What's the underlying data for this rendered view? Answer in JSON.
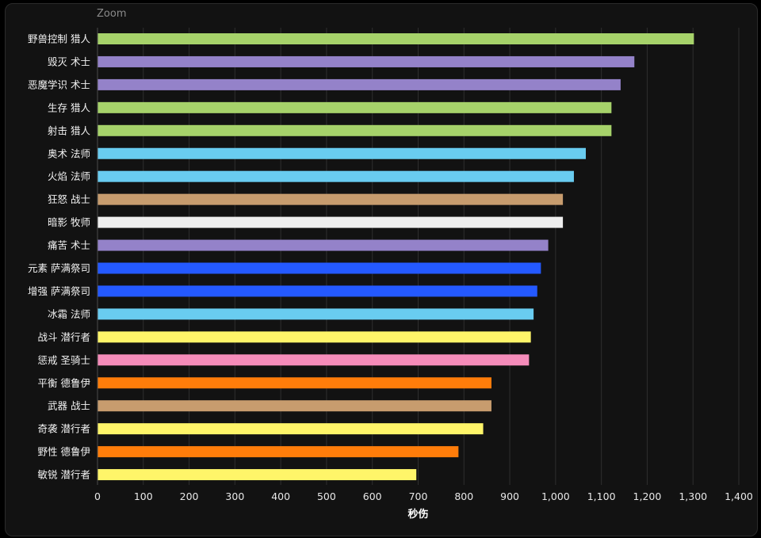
{
  "zoom_label": "Zoom",
  "colors": {
    "background": "#121212",
    "gridline": "#2e2e2e",
    "hunter": "#a6d26a",
    "warlock": "#9482c9",
    "mage": "#69ccf0",
    "warrior": "#c79c6e",
    "priest": "#eeeeee",
    "shaman": "#2459ff",
    "rogue": "#fff569",
    "paladin": "#f58cba",
    "druid": "#ff7d0a"
  },
  "chart_data": {
    "type": "bar",
    "orientation": "horizontal",
    "xlabel": "秒伤",
    "xlim": [
      0,
      1400
    ],
    "xticks": [
      "0",
      "100",
      "200",
      "300",
      "400",
      "500",
      "600",
      "700",
      "800",
      "900",
      "1,000",
      "1,100",
      "1,200",
      "1,300",
      "1,400"
    ],
    "grid": true,
    "categories": [
      "野兽控制 猎人",
      "毁灭 术士",
      "恶魔学识 术士",
      "生存 猎人",
      "射击 猎人",
      "奥术 法师",
      "火焰 法师",
      "狂怒 战士",
      "暗影 牧师",
      "痛苦 术士",
      "元素 萨满祭司",
      "增强 萨满祭司",
      "冰霜 法师",
      "战斗 潜行者",
      "惩戒 圣骑士",
      "平衡 德鲁伊",
      "武器 战士",
      "奇袭 潜行者",
      "野性 德鲁伊",
      "敏锐 潜行者"
    ],
    "values": [
      1302,
      1172,
      1142,
      1122,
      1122,
      1066,
      1040,
      1016,
      1016,
      984,
      968,
      960,
      952,
      946,
      942,
      860,
      860,
      842,
      788,
      696
    ],
    "bar_colors": [
      "hunter",
      "warlock",
      "warlock",
      "hunter",
      "hunter",
      "mage",
      "mage",
      "warrior",
      "priest",
      "warlock",
      "shaman",
      "shaman",
      "mage",
      "rogue",
      "paladin",
      "druid",
      "warrior",
      "rogue",
      "druid",
      "rogue"
    ]
  }
}
